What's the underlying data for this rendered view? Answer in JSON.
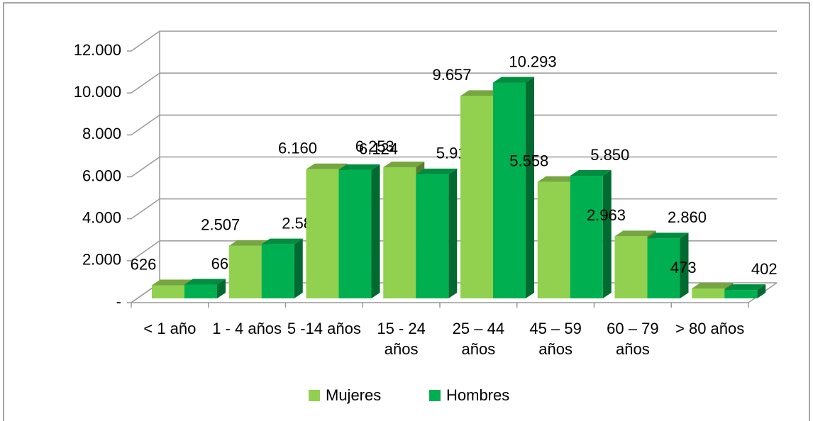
{
  "chart_data": {
    "type": "bar3d",
    "categories": [
      "< 1 año",
      "1 - 4 años",
      "5 -14 años",
      "15 - 24 años",
      "25 – 44 años",
      "45 – 59 años",
      "60 – 79 años",
      "> 80 años"
    ],
    "series": [
      {
        "name": "Mujeres",
        "color": "#92d050",
        "values": [
          626,
          2507,
          6160,
          6253,
          9657,
          5558,
          2963,
          473
        ],
        "value_labels": [
          "626",
          "2.507",
          "6.160",
          "6.253",
          "9.657",
          "5.558",
          "2.963",
          "473"
        ]
      },
      {
        "name": "Hombres",
        "color": "#00b050",
        "values": [
          661,
          2582,
          6124,
          5919,
          10293,
          5850,
          2860,
          402
        ],
        "value_labels": [
          "661",
          "2.582",
          "6.124",
          "5.919",
          "10.293",
          "5.850",
          "2.860",
          "402"
        ]
      }
    ],
    "ylim": [
      0,
      12000
    ],
    "yticks": [
      {
        "value": 0,
        "label": "-"
      },
      {
        "value": 2000,
        "label": "2.000"
      },
      {
        "value": 4000,
        "label": "4.000"
      },
      {
        "value": 6000,
        "label": "6.000"
      },
      {
        "value": 8000,
        "label": "8.000"
      },
      {
        "value": 10000,
        "label": "10.000"
      },
      {
        "value": 12000,
        "label": "12.000"
      }
    ],
    "grid": true,
    "legend": "bottom"
  }
}
